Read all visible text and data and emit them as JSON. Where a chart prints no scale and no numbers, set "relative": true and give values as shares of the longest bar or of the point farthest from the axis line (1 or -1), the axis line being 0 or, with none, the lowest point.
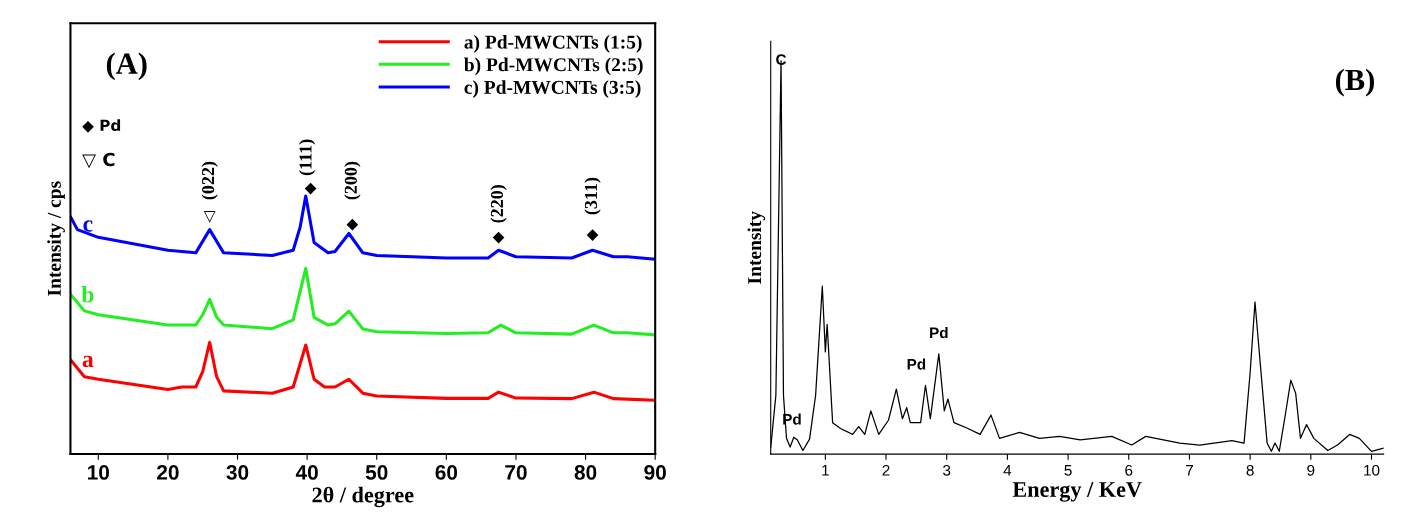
{
  "chart_data": [
    {
      "type": "line",
      "relative": true,
      "xlabel": "2θ / degree",
      "ylabel": "Intensity / cps",
      "xlim": [
        6,
        90
      ],
      "xticks": [
        10,
        20,
        30,
        40,
        50,
        60,
        70,
        80,
        90
      ],
      "legend": "top right",
      "grid": false,
      "marker": "none",
      "line_style": "solid",
      "series": [
        {
          "name": "a) Pd-MWCNTs (1:5)",
          "color": "#ff0000",
          "x": [
            6,
            8,
            10,
            20,
            22,
            24,
            25,
            26,
            27,
            28,
            35,
            38,
            39.8,
            41,
            42.5,
            44,
            46,
            48,
            50,
            60,
            66,
            67.5,
            70,
            78,
            81.2,
            84,
            90
          ],
          "values": [
            0.366,
            0.3,
            0.29,
            0.25,
            0.26,
            0.26,
            0.32,
            0.433,
            0.3,
            0.245,
            0.236,
            0.26,
            0.423,
            0.29,
            0.26,
            0.26,
            0.29,
            0.236,
            0.225,
            0.216,
            0.216,
            0.24,
            0.217,
            0.215,
            0.24,
            0.215,
            0.209
          ]
        },
        {
          "name": "b) Pd-MWCNTs (2:5)",
          "color": "#22ee22",
          "x": [
            6,
            8,
            10,
            20,
            24,
            25,
            26,
            27,
            28,
            35,
            38,
            39.8,
            41,
            43,
            44,
            46,
            48,
            50,
            60,
            66,
            67.8,
            70,
            78,
            81.2,
            84,
            86,
            90
          ],
          "values": [
            0.62,
            0.555,
            0.54,
            0.5,
            0.5,
            0.54,
            0.6,
            0.53,
            0.5,
            0.486,
            0.52,
            0.72,
            0.53,
            0.5,
            0.505,
            0.554,
            0.485,
            0.474,
            0.467,
            0.47,
            0.5,
            0.47,
            0.465,
            0.5,
            0.47,
            0.47,
            0.462
          ]
        },
        {
          "name": "c) Pd-MWCNTs (3:5)",
          "color": "#0000ff",
          "x": [
            6,
            7,
            10,
            20,
            24,
            26,
            28,
            35,
            38,
            39,
            39.8,
            41,
            43,
            44,
            46,
            48,
            50,
            60,
            66,
            67.5,
            70,
            78,
            81,
            84,
            86,
            90
          ],
          "values": [
            0.92,
            0.87,
            0.84,
            0.79,
            0.78,
            0.87,
            0.78,
            0.77,
            0.79,
            0.88,
            1.0,
            0.82,
            0.78,
            0.785,
            0.855,
            0.78,
            0.77,
            0.76,
            0.76,
            0.79,
            0.765,
            0.76,
            0.79,
            0.765,
            0.765,
            0.755
          ]
        }
      ],
      "annotations": [
        "(A)",
        "◆ Pd",
        "▽ C",
        "(022)",
        "▽",
        "(111)",
        "◆",
        "(200)",
        "◆",
        "(220)",
        "◆",
        "(311)",
        "◆",
        "c",
        "b",
        "a"
      ]
    },
    {
      "type": "line",
      "relative": true,
      "xlabel": "Energy / KeV",
      "ylabel": "Intensity",
      "xlim": [
        0.1,
        10.2
      ],
      "xticks": [
        1,
        2,
        3,
        4,
        5,
        6,
        7,
        8,
        9,
        10
      ],
      "grid": false,
      "legend": false,
      "marker": "none",
      "line_style": "solid",
      "series": [
        {
          "color": "#000000",
          "x": [
            0.1,
            0.185,
            0.27,
            0.31,
            0.36,
            0.42,
            0.48,
            0.54,
            0.63,
            0.74,
            0.84,
            0.95,
            1.0,
            1.03,
            1.12,
            1.25,
            1.45,
            1.55,
            1.65,
            1.75,
            1.88,
            2.04,
            2.17,
            2.27,
            2.34,
            2.4,
            2.57,
            2.65,
            2.73,
            2.87,
            2.96,
            3.02,
            3.12,
            3.35,
            3.55,
            3.73,
            3.87,
            4.2,
            4.53,
            4.86,
            5.2,
            5.72,
            6.05,
            6.28,
            6.84,
            7.17,
            7.7,
            7.9,
            8.0,
            8.08,
            8.18,
            8.28,
            8.35,
            8.41,
            8.48,
            8.58,
            8.67,
            8.75,
            8.83,
            8.93,
            9.05,
            9.28,
            9.44,
            9.64,
            9.8,
            10.0,
            10.2
          ],
          "values": [
            0.017,
            0.15,
            1.0,
            0.15,
            0.04,
            0.018,
            0.043,
            0.036,
            0.009,
            0.038,
            0.15,
            0.427,
            0.26,
            0.33,
            0.08,
            0.065,
            0.05,
            0.07,
            0.05,
            0.11,
            0.05,
            0.086,
            0.165,
            0.09,
            0.118,
            0.08,
            0.08,
            0.175,
            0.09,
            0.255,
            0.11,
            0.14,
            0.08,
            0.065,
            0.05,
            0.099,
            0.04,
            0.055,
            0.04,
            0.045,
            0.036,
            0.045,
            0.023,
            0.045,
            0.028,
            0.023,
            0.034,
            0.028,
            0.207,
            0.387,
            0.207,
            0.028,
            0.007,
            0.028,
            0.007,
            0.1,
            0.188,
            0.155,
            0.04,
            0.075,
            0.04,
            0.009,
            0.023,
            0.05,
            0.04,
            0.007,
            0.015
          ]
        }
      ],
      "annotations": [
        "(B)",
        "C",
        "Pd",
        "Pd",
        "Pd"
      ]
    }
  ]
}
